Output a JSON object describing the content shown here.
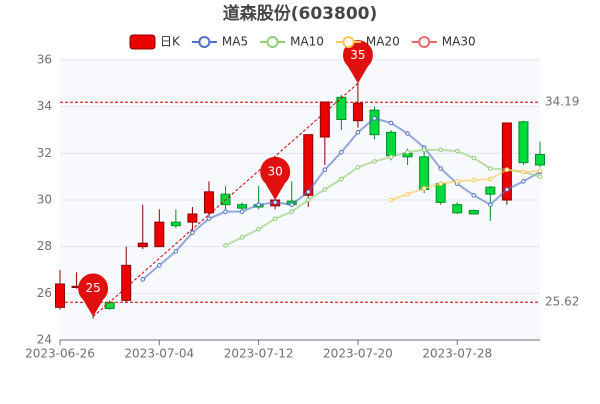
{
  "chart_data": {
    "type": "candlestick",
    "title": "道森股份(603800)",
    "categories": [
      "2023-06-26",
      null,
      null,
      null,
      null,
      null,
      "2023-07-04",
      null,
      null,
      null,
      null,
      null,
      "2023-07-12",
      null,
      null,
      null,
      null,
      null,
      "2023-07-20",
      null,
      null,
      null,
      null,
      null,
      "2023-07-28",
      null,
      null,
      null,
      null,
      null
    ],
    "series": [
      {
        "name": "日K",
        "up_color": "#ec0000",
        "up_border": "#8a0000",
        "down_color": "#00da3c",
        "down_border": "#008f28",
        "open": [
          25.4,
          26.25,
          26.2,
          25.6,
          25.7,
          28.0,
          28.0,
          29.05,
          29.05,
          29.45,
          30.25,
          29.8,
          29.8,
          29.75,
          29.95,
          30.2,
          32.7,
          34.4,
          33.4,
          33.85,
          32.9,
          32.0,
          31.85,
          30.7,
          29.8,
          29.55,
          30.55,
          30.0,
          33.35,
          31.95
        ],
        "close": [
          26.4,
          26.3,
          26.05,
          25.35,
          27.2,
          28.15,
          29.05,
          28.9,
          29.4,
          30.35,
          29.8,
          29.65,
          29.7,
          30.0,
          29.8,
          32.8,
          34.2,
          33.45,
          34.15,
          32.8,
          31.9,
          31.85,
          30.45,
          29.9,
          29.45,
          29.4,
          30.25,
          33.3,
          31.6,
          31.5
        ],
        "low": [
          25.3,
          26.2,
          24.9,
          25.3,
          25.6,
          27.9,
          28.0,
          28.8,
          28.6,
          29.3,
          29.6,
          29.5,
          29.6,
          29.6,
          29.7,
          29.7,
          31.5,
          33.0,
          33.1,
          32.6,
          31.7,
          31.5,
          30.3,
          29.8,
          29.4,
          29.4,
          29.1,
          29.8,
          31.5,
          31.4
        ],
        "high": [
          27.0,
          26.9,
          26.3,
          25.7,
          28.0,
          29.8,
          29.6,
          29.6,
          29.7,
          30.8,
          30.6,
          29.9,
          30.6,
          30.0,
          30.8,
          32.8,
          34.2,
          34.5,
          35.2,
          34.0,
          33.0,
          32.2,
          32.3,
          30.8,
          29.9,
          29.6,
          30.6,
          33.3,
          33.4,
          32.5
        ]
      },
      {
        "name": "MA5",
        "color": "#5470c6",
        "values": [
          null,
          null,
          null,
          null,
          null,
          26.6,
          27.2,
          27.8,
          28.6,
          29.2,
          29.5,
          29.5,
          29.8,
          29.9,
          29.8,
          30.35,
          31.3,
          32.05,
          32.9,
          33.5,
          33.3,
          32.85,
          32.25,
          31.35,
          30.7,
          30.2,
          29.8,
          30.45,
          30.8,
          31.2
        ]
      },
      {
        "name": "MA10",
        "color": "#91cc75",
        "values": [
          null,
          null,
          null,
          null,
          null,
          null,
          null,
          null,
          null,
          null,
          28.05,
          28.4,
          28.75,
          29.2,
          29.5,
          30.0,
          30.45,
          30.9,
          31.4,
          31.65,
          31.85,
          32.05,
          32.15,
          32.15,
          32.1,
          31.8,
          31.35,
          31.3,
          31.2,
          31.0
        ]
      },
      {
        "name": "MA20",
        "color": "#fac858",
        "values": [
          null,
          null,
          null,
          null,
          null,
          null,
          null,
          null,
          null,
          null,
          null,
          null,
          null,
          null,
          null,
          null,
          null,
          null,
          null,
          null,
          30.0,
          30.25,
          30.5,
          30.7,
          30.8,
          30.85,
          30.9,
          31.3,
          31.2,
          31.25
        ]
      },
      {
        "name": "MA30",
        "color": "#ee6666",
        "values": [
          null,
          null,
          null,
          null,
          null,
          null,
          null,
          null,
          null,
          null,
          null,
          null,
          null,
          null,
          null,
          null,
          null,
          null,
          null,
          null,
          null,
          null,
          null,
          null,
          null,
          null,
          null,
          null,
          null,
          null
        ]
      }
    ],
    "ylim": [
      24,
      36
    ],
    "yticks": [
      24,
      26,
      28,
      30,
      32,
      34,
      36
    ],
    "grid": true,
    "mark_lines": [
      34.19,
      25.62
    ],
    "mark_line_color": "#cc0000",
    "mark_points": [
      25,
      30,
      35
    ],
    "mark_point_color": "#e01010"
  }
}
